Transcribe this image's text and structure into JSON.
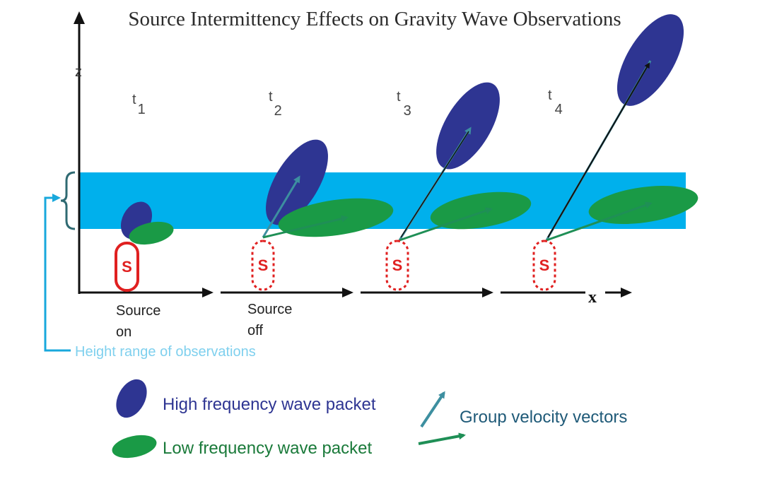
{
  "title": "Source Intermittency Effects on Gravity Wave Observations",
  "axes": {
    "z_label": "z",
    "x_label": "x"
  },
  "time_labels": [
    {
      "base": "t",
      "sub": "1"
    },
    {
      "base": "t",
      "sub": "2"
    },
    {
      "base": "t",
      "sub": "3"
    },
    {
      "base": "t",
      "sub": "4"
    }
  ],
  "source_symbol": "S",
  "source_states": [
    {
      "line1": "Source",
      "line2": "on"
    },
    {
      "line1": "Source",
      "line2": "off"
    }
  ],
  "height_range_label": "Height range of observations",
  "legend": {
    "high": "High frequency wave packet",
    "low": "Low frequency wave packet",
    "group": "Group velocity vectors"
  },
  "colors": {
    "band": "#00b0ec",
    "high_packet": "#2e3592",
    "low_packet": "#1a9a46",
    "source": "#e02020",
    "arrow_high": "#3d8fa0",
    "arrow_low": "#1f8f56",
    "legend_high_text": "#2e3592",
    "legend_low_text": "#1a7a3a",
    "legend_group_text": "#1f5a78",
    "height_text": "#7fd0ee"
  }
}
